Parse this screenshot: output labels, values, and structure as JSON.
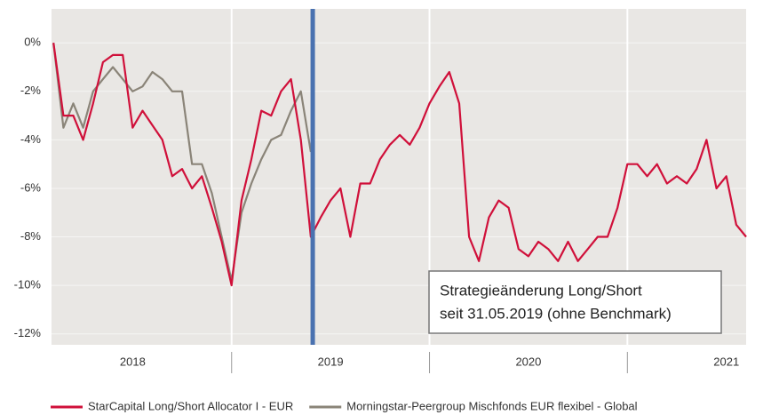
{
  "chart_data": {
    "type": "line",
    "x": [
      2018.1,
      2018.15,
      2018.2,
      2018.25,
      2018.3,
      2018.35,
      2018.4,
      2018.45,
      2018.5,
      2018.55,
      2018.6,
      2018.65,
      2018.7,
      2018.75,
      2018.8,
      2018.85,
      2018.9,
      2018.95,
      2019.0,
      2019.05,
      2019.1,
      2019.15,
      2019.2,
      2019.25,
      2019.3,
      2019.35,
      2019.4,
      2019.45,
      2019.5,
      2019.55,
      2019.6,
      2019.65,
      2019.7,
      2019.75,
      2019.8,
      2019.85,
      2019.9,
      2019.95,
      2020.0,
      2020.05,
      2020.1,
      2020.15,
      2020.2,
      2020.25,
      2020.3,
      2020.35,
      2020.4,
      2020.45,
      2020.5,
      2020.55,
      2020.6,
      2020.65,
      2020.7,
      2020.75,
      2020.8,
      2020.85,
      2020.9,
      2020.95,
      2021.0,
      2021.05,
      2021.1,
      2021.15,
      2021.2,
      2021.25,
      2021.3,
      2021.35,
      2021.4,
      2021.45,
      2021.5,
      2021.55,
      2021.6
    ],
    "series": [
      {
        "name": "StarCapital Long/Short Allocator I - EUR",
        "color": "#d0103a",
        "values": [
          0,
          -3.0,
          -3.0,
          -4.0,
          -2.5,
          -0.8,
          -0.5,
          -0.5,
          -3.5,
          -2.8,
          -3.4,
          -4.0,
          -5.5,
          -5.2,
          -6.0,
          -5.5,
          -6.8,
          -8.2,
          -10.0,
          -6.5,
          -4.8,
          -2.8,
          -3.0,
          -2.0,
          -1.5,
          -4.0,
          -8.0,
          -7.2,
          -6.5,
          -6.0,
          -8.0,
          -5.8,
          -5.8,
          -4.8,
          -4.2,
          -3.8,
          -4.2,
          -3.5,
          -2.5,
          -1.8,
          -1.2,
          -2.5,
          -8.0,
          -9.0,
          -7.2,
          -6.5,
          -6.8,
          -8.5,
          -8.8,
          -8.2,
          -8.5,
          -9.0,
          -8.2,
          -9.0,
          -8.5,
          -8.0,
          -8.0,
          -6.8,
          -5.0,
          -5.0,
          -5.5,
          -5.0,
          -5.8,
          -5.5,
          -5.8,
          -5.2,
          -4.0,
          -6.0,
          -5.5,
          -7.5,
          -8.0
        ]
      },
      {
        "name": "Morningstar-Peergroup Mischfonds EUR flexibel - Global",
        "color": "#8a8478",
        "values": [
          0,
          -3.5,
          -2.5,
          -3.5,
          -2.0,
          -1.5,
          -1.0,
          -1.5,
          -2.0,
          -1.8,
          -1.2,
          -1.5,
          -2.0,
          -2.0,
          -5.0,
          -5.0,
          -6.2,
          -8.0,
          -9.8,
          -7.0,
          -5.8,
          -4.8,
          -4.0,
          -3.8,
          -2.8,
          -2.0,
          -4.5,
          null,
          null,
          null,
          null,
          null,
          null,
          null,
          null,
          null,
          null,
          null,
          null,
          null,
          null,
          null,
          null,
          null,
          null,
          null,
          null,
          null,
          null,
          null,
          null,
          null,
          null,
          null,
          null,
          null,
          null,
          null,
          null,
          null,
          null,
          null,
          null,
          null,
          null,
          null,
          null,
          null,
          null,
          null,
          null
        ]
      }
    ],
    "xlim": [
      2018.09,
      2021.6
    ],
    "xticks": [
      {
        "value": 2018.5,
        "label": "2018"
      },
      {
        "value": 2019.5,
        "label": "2019"
      },
      {
        "value": 2020.5,
        "label": "2020"
      },
      {
        "value": 2021.5,
        "label": "2021"
      }
    ],
    "xgrid": [
      2019,
      2020,
      2021
    ],
    "ylim": [
      -12.45,
      1.4
    ],
    "yticks": [
      {
        "value": 0,
        "label": "0%"
      },
      {
        "value": -2,
        "label": "-2%"
      },
      {
        "value": -4,
        "label": "-4%"
      },
      {
        "value": -6,
        "label": "-6%"
      },
      {
        "value": -8,
        "label": "-8%"
      },
      {
        "value": -10,
        "label": "-10%"
      },
      {
        "value": -12,
        "label": "-12%"
      }
    ],
    "grid": true,
    "strategy_change_x": 2019.41,
    "strategy_change_color": "#4a72b0",
    "annotation": [
      "Strategieänderung Long/Short",
      "seit 31.05.2019 (ohne Benchmark)"
    ],
    "legend": "bottom"
  }
}
